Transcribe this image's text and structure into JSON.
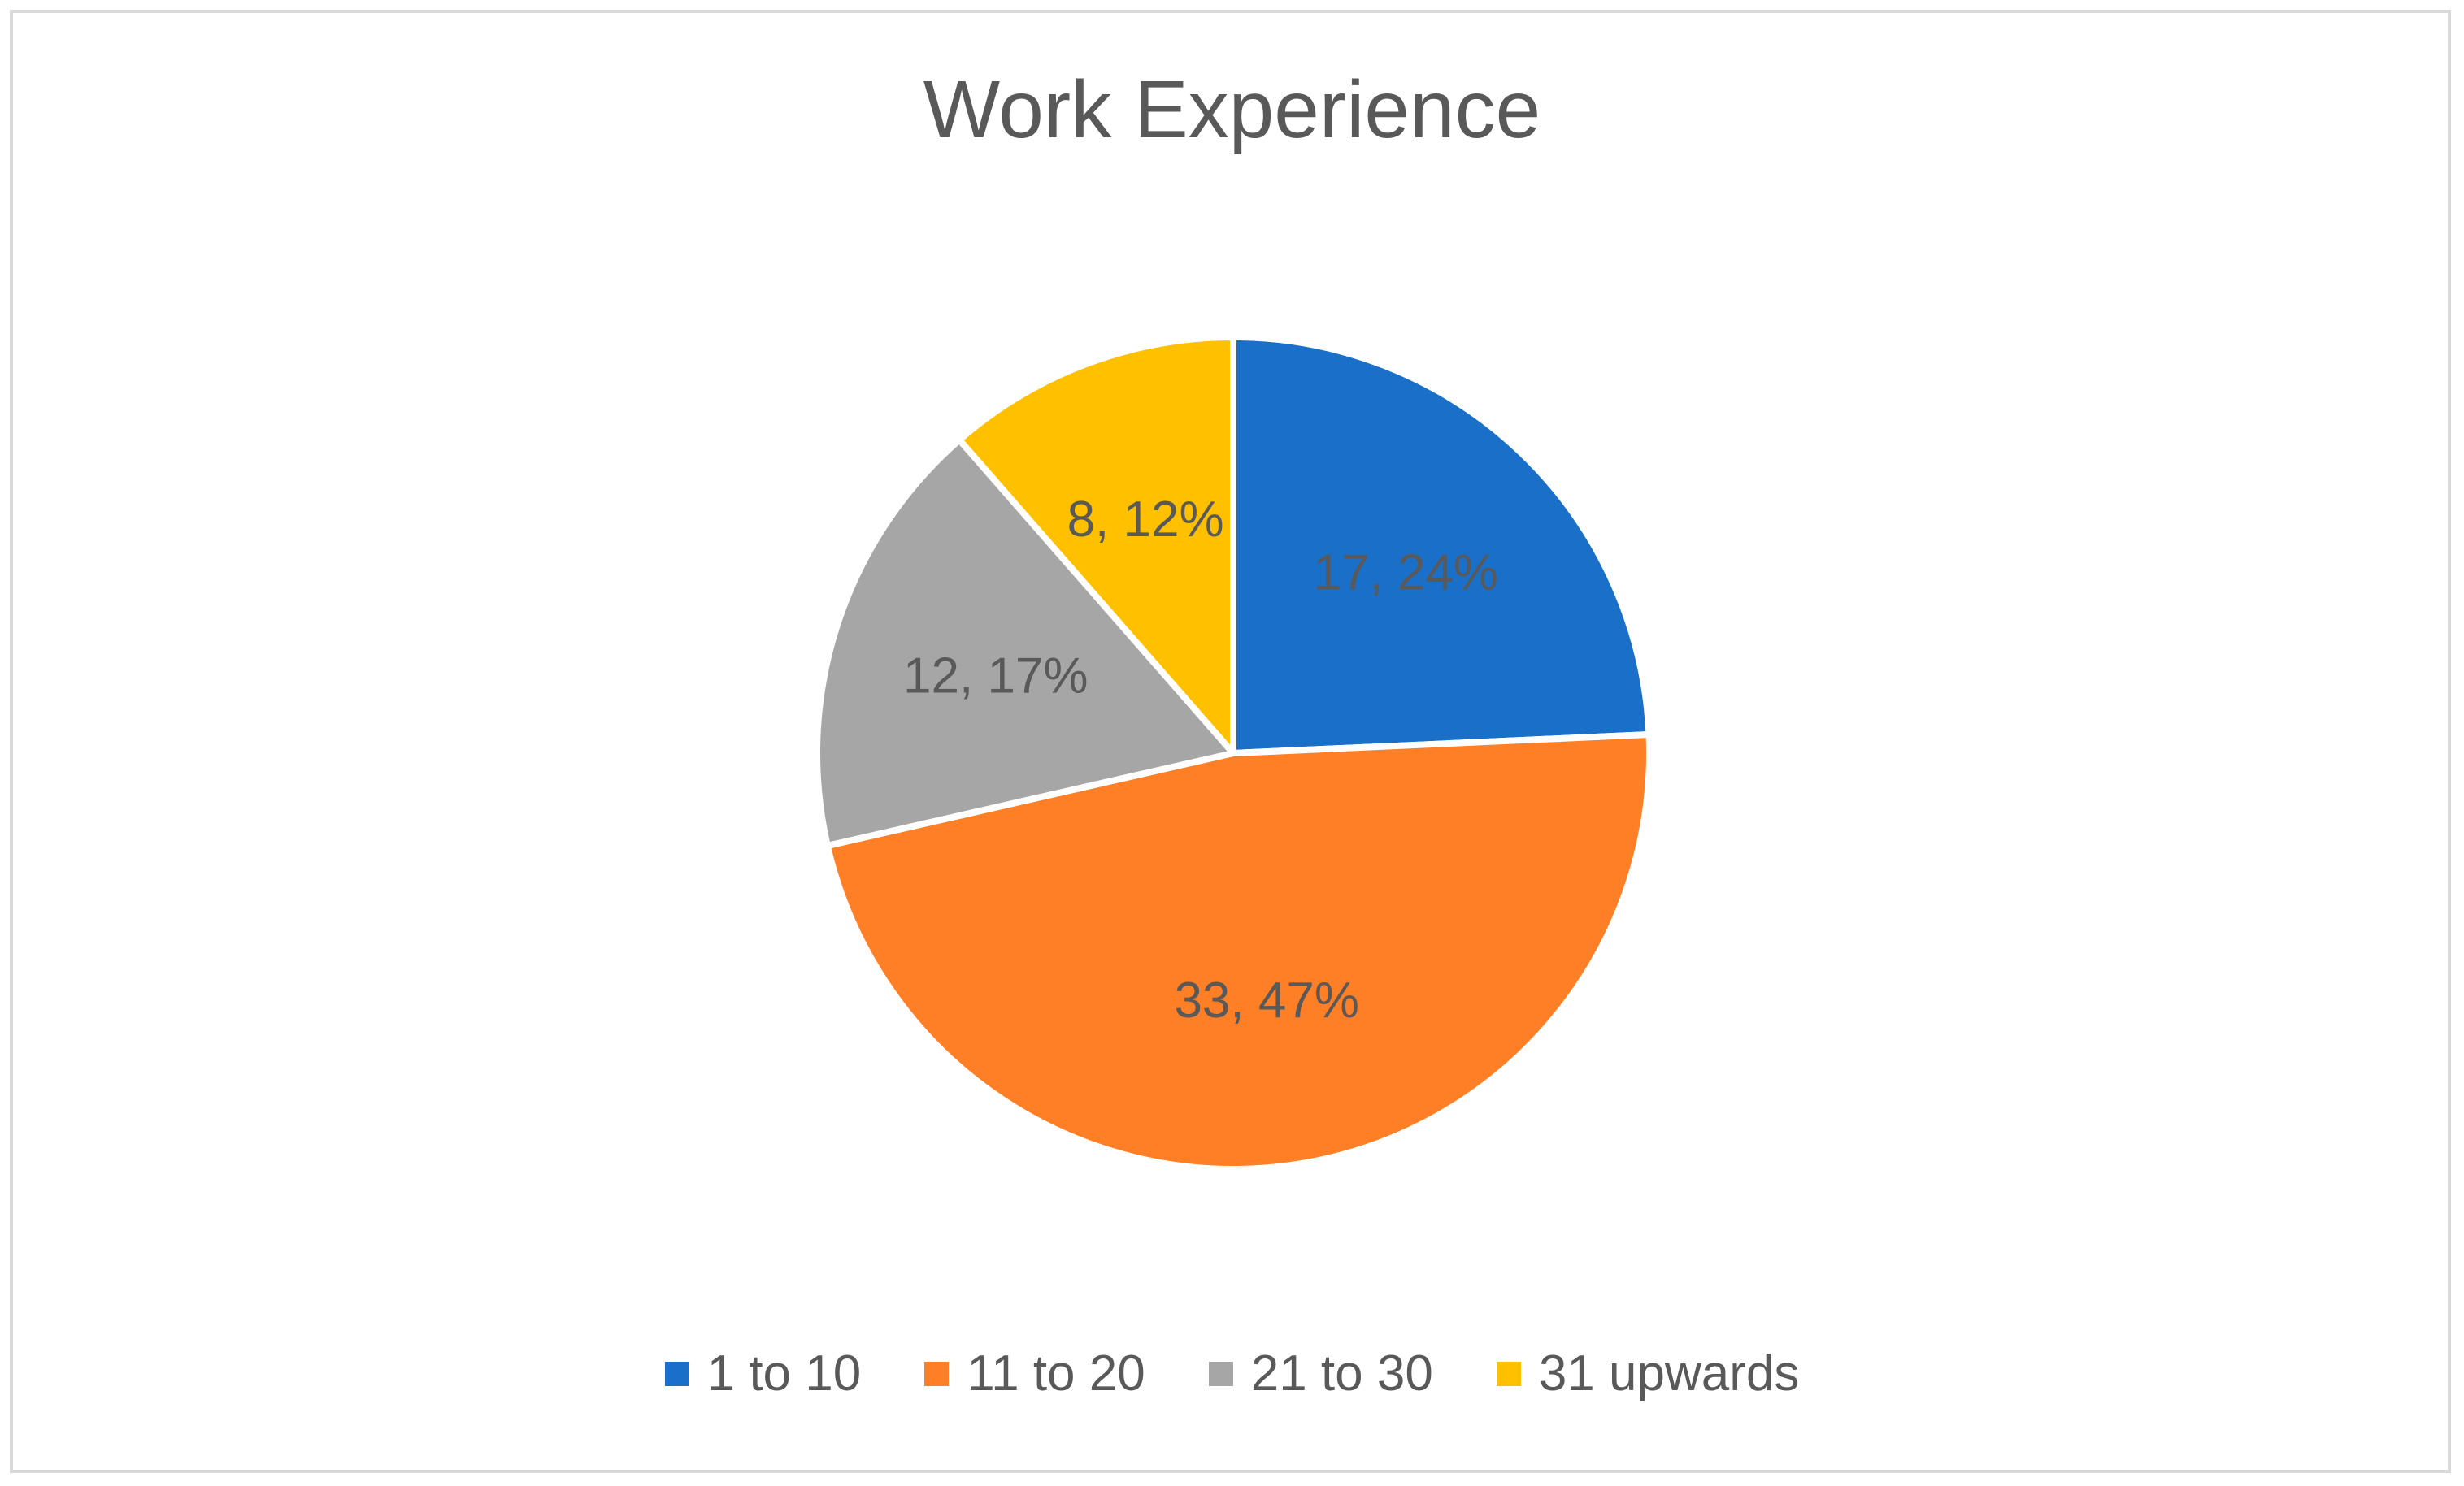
{
  "chart_data": {
    "type": "pie",
    "title": "Work Experience",
    "categories": [
      "1 to 10",
      "11 to 20",
      "21 to 30",
      "31 upwards"
    ],
    "values": [
      17,
      33,
      12,
      8
    ],
    "percentages": [
      24,
      47,
      17,
      12
    ],
    "data_labels": [
      "17, 24%",
      "33, 47%",
      "12, 17%",
      "8, 12%"
    ],
    "colors": [
      "#1a70c8",
      "#ff7f27",
      "#a6a6a6",
      "#ffc000"
    ],
    "legend_position": "bottom",
    "start_angle": "12 o'clock, clockwise"
  }
}
